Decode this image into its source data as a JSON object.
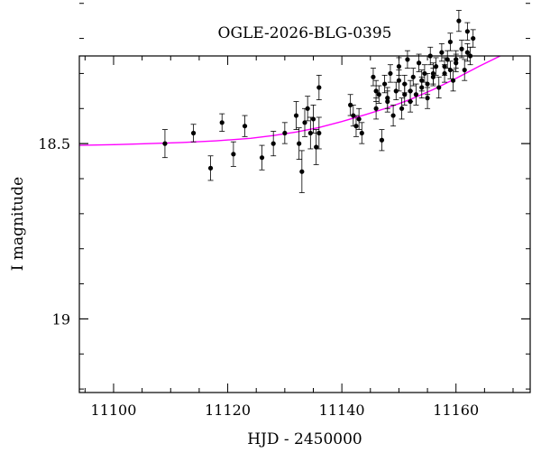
{
  "chart_data": {
    "type": "scatter",
    "title": "OGLE-2026-BLG-0395",
    "xlabel": "HJD - 2450000",
    "ylabel": "I magnitude",
    "xlim": [
      11094,
      11173
    ],
    "ylim": [
      19.21,
      18.25
    ],
    "y_inverted": true,
    "grid": false,
    "xticks": [
      11100,
      11120,
      11140,
      11160
    ],
    "yticks": [
      18,
      18.5,
      19
    ],
    "colors": {
      "points": "#000000",
      "model": "#ff00ff"
    },
    "series": [
      {
        "kind": "observations",
        "x": [
          11109,
          11114,
          11117,
          11119,
          11121,
          11123,
          11126,
          11128,
          11130,
          11132,
          11132.5,
          11133,
          11133.5,
          11134,
          11134.5,
          11135,
          11135.5,
          11136,
          11136,
          11141.5,
          11142,
          11142.5,
          11143,
          11143.5,
          11145.5,
          11146,
          11146.5,
          11147,
          11147.5,
          11148,
          11148.5,
          11149,
          11149.5,
          11150,
          11150.5,
          11151,
          11151.5,
          11152,
          11152.5,
          11153,
          11153.5,
          11154,
          11154.5,
          11155,
          11155.5,
          11156,
          11156.5,
          11157,
          11157.5,
          11158,
          11158.5,
          11159,
          11159.5,
          11160,
          11160.5,
          11161,
          11161.5,
          11162,
          11162.5,
          11163,
          11146,
          11148,
          11150,
          11152,
          11154,
          11156,
          11158,
          11160,
          11162,
          11151,
          11155,
          11159
        ],
        "y": [
          18.5,
          18.47,
          18.57,
          18.44,
          18.53,
          18.45,
          18.54,
          18.5,
          18.47,
          18.42,
          18.5,
          18.58,
          18.44,
          18.4,
          18.47,
          18.43,
          18.51,
          18.47,
          18.34,
          18.39,
          18.42,
          18.45,
          18.43,
          18.47,
          18.31,
          18.4,
          18.36,
          18.49,
          18.33,
          18.38,
          18.3,
          18.42,
          18.35,
          18.28,
          18.4,
          18.33,
          18.26,
          18.38,
          18.31,
          18.36,
          18.27,
          18.34,
          18.3,
          18.37,
          18.25,
          18.31,
          18.28,
          18.34,
          18.24,
          18.3,
          18.26,
          18.21,
          18.32,
          18.27,
          18.15,
          18.23,
          18.29,
          18.18,
          18.25,
          18.2,
          18.35,
          18.37,
          18.32,
          18.35,
          18.32,
          18.3,
          18.28,
          18.26,
          18.24,
          18.36,
          18.33,
          18.29
        ],
        "yerr": [
          0.04,
          0.025,
          0.035,
          0.025,
          0.035,
          0.03,
          0.035,
          0.035,
          0.03,
          0.04,
          0.045,
          0.06,
          0.04,
          0.035,
          0.045,
          0.04,
          0.05,
          0.045,
          0.035,
          0.03,
          0.03,
          0.03,
          0.03,
          0.03,
          0.025,
          0.03,
          0.025,
          0.03,
          0.025,
          0.03,
          0.025,
          0.03,
          0.025,
          0.025,
          0.03,
          0.025,
          0.025,
          0.03,
          0.025,
          0.03,
          0.025,
          0.03,
          0.025,
          0.03,
          0.025,
          0.025,
          0.025,
          0.03,
          0.025,
          0.025,
          0.025,
          0.025,
          0.03,
          0.025,
          0.03,
          0.025,
          0.03,
          0.025,
          0.025,
          0.025,
          0.03,
          0.03,
          0.03,
          0.03,
          0.03,
          0.03,
          0.025,
          0.025,
          0.025,
          0.03,
          0.03,
          0.025
        ]
      },
      {
        "kind": "model",
        "x": [
          11094,
          11100,
          11106,
          11112,
          11118,
          11124,
          11128,
          11132,
          11136,
          11140,
          11144,
          11148,
          11152,
          11156,
          11160,
          11164,
          11168,
          11173
        ],
        "y": [
          18.505,
          18.503,
          18.5,
          18.497,
          18.492,
          18.485,
          18.477,
          18.467,
          18.454,
          18.437,
          18.418,
          18.398,
          18.374,
          18.346,
          18.314,
          18.28,
          18.248,
          18.225
        ]
      }
    ]
  }
}
